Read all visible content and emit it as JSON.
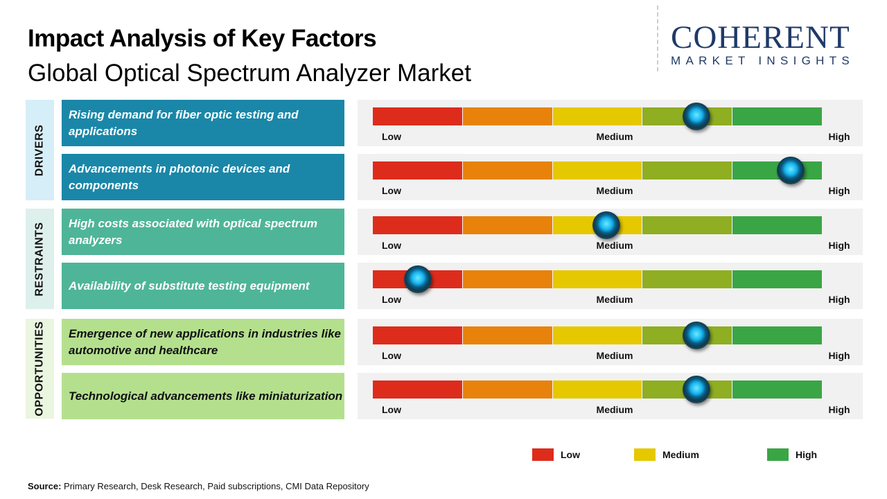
{
  "title": "Impact Analysis of Key Factors",
  "subtitle": "Global Optical Spectrum Analyzer Market",
  "logo": {
    "line1": "COHERENT",
    "line2": "MARKET INSIGHTS"
  },
  "colors": {
    "low": "#de2c1c",
    "low_medium": "#e8820a",
    "medium": "#e6c800",
    "medium_high": "#8fae22",
    "high": "#3aa545",
    "drivers": "#1a87a8",
    "restraints": "#4fb598",
    "opportunities": "#b4e08e"
  },
  "chart_data": {
    "type": "gauge",
    "scale": {
      "min_label": "Low",
      "mid_label": "Medium",
      "max_label": "High",
      "range": [
        0,
        1
      ]
    },
    "groups": [
      {
        "name": "DRIVERS",
        "items": [
          {
            "label": "Rising demand for fiber optic testing and applications",
            "impact": 0.72
          },
          {
            "label": "Advancements in photonic devices and components",
            "impact": 0.93
          }
        ]
      },
      {
        "name": "RESTRAINTS",
        "items": [
          {
            "label": "High costs associated with optical spectrum analyzers",
            "impact": 0.52
          },
          {
            "label": "Availability of substitute testing equipment",
            "impact": 0.1
          }
        ]
      },
      {
        "name": "OPPORTUNITIES",
        "items": [
          {
            "label": "Emergence of new applications in industries like automotive and healthcare",
            "impact": 0.72
          },
          {
            "label": "Technological advancements like miniaturization",
            "impact": 0.72
          }
        ]
      }
    ],
    "legend": [
      {
        "label": "Low",
        "color": "#de2c1c"
      },
      {
        "label": "Medium",
        "color": "#e6c800"
      },
      {
        "label": "High",
        "color": "#3aa545"
      }
    ]
  },
  "source": {
    "label": "Source:",
    "text": " Primary Research, Desk Research, Paid subscriptions, CMI Data Repository"
  }
}
